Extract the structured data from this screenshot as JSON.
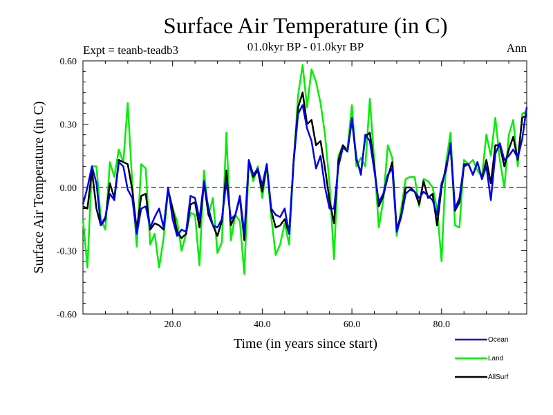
{
  "chart_data": {
    "type": "line",
    "title": "Surface Air Temperature (in C)",
    "subtitle": "01.0kyr BP - 01.0kyr BP",
    "left_label": "Expt = teanb-teadb3",
    "right_label": "Ann",
    "xlabel": "Time (in years since start)",
    "ylabel": "Surface Air Temperature (in C)",
    "xlim": [
      0,
      99
    ],
    "ylim": [
      -0.6,
      0.6
    ],
    "xticks": [
      20,
      40,
      60,
      80
    ],
    "xtick_labels": [
      "20.0",
      "40.0",
      "60.0",
      "80.0"
    ],
    "yticks": [
      -0.6,
      -0.3,
      0.0,
      0.3,
      0.6
    ],
    "ytick_labels": [
      "-0.60",
      "-0.30",
      "0.00",
      "0.30",
      "0.60"
    ],
    "zero_line": true,
    "legend_position": "bottom-right",
    "x": [
      0,
      1,
      2,
      3,
      4,
      5,
      6,
      7,
      8,
      9,
      10,
      11,
      12,
      13,
      14,
      15,
      16,
      17,
      18,
      19,
      20,
      21,
      22,
      23,
      24,
      25,
      26,
      27,
      28,
      29,
      30,
      31,
      32,
      33,
      34,
      35,
      36,
      37,
      38,
      39,
      40,
      41,
      42,
      43,
      44,
      45,
      46,
      47,
      48,
      49,
      50,
      51,
      52,
      53,
      54,
      55,
      56,
      57,
      58,
      59,
      60,
      61,
      62,
      63,
      64,
      65,
      66,
      67,
      68,
      69,
      70,
      71,
      72,
      73,
      74,
      75,
      76,
      77,
      78,
      79,
      80,
      81,
      82,
      83,
      84,
      85,
      86,
      87,
      88,
      89,
      90,
      91,
      92,
      93,
      94,
      95,
      96,
      97,
      98,
      99
    ],
    "series": [
      {
        "name": "Land",
        "color": "#00ee00",
        "values": [
          -0.15,
          -0.38,
          0.1,
          0.1,
          -0.15,
          -0.2,
          0.12,
          0.05,
          0.18,
          0.12,
          0.4,
          0.02,
          -0.28,
          0.11,
          0.09,
          -0.27,
          -0.22,
          -0.38,
          -0.24,
          -0.01,
          -0.1,
          -0.16,
          -0.3,
          -0.22,
          -0.12,
          -0.13,
          -0.37,
          0.08,
          -0.13,
          -0.05,
          -0.31,
          -0.26,
          0.26,
          -0.25,
          -0.13,
          -0.16,
          -0.41,
          0.12,
          0.03,
          0.1,
          -0.05,
          0.1,
          -0.14,
          -0.32,
          -0.27,
          -0.17,
          -0.27,
          0.12,
          0.44,
          0.58,
          0.38,
          0.56,
          0.5,
          0.4,
          0.25,
          0.02,
          -0.34,
          0.15,
          0.2,
          0.18,
          0.39,
          0.1,
          0.14,
          0.1,
          0.42,
          0.12,
          -0.19,
          -0.06,
          0.2,
          0.14,
          -0.23,
          -0.1,
          0.04,
          0.05,
          0.05,
          -0.09,
          0.04,
          0.03,
          0.0,
          -0.1,
          -0.35,
          0.12,
          0.26,
          -0.18,
          -0.19,
          0.13,
          0.11,
          0.13,
          0.08,
          0.05,
          0.25,
          0.15,
          0.33,
          0.13,
          0.0,
          0.25,
          0.32,
          0.1,
          0.35,
          0.36
        ]
      },
      {
        "name": "AllSurf",
        "color": "#000000",
        "values": [
          -0.09,
          -0.1,
          0.08,
          -0.1,
          -0.18,
          -0.15,
          0.02,
          -0.05,
          0.13,
          0.12,
          0.11,
          -0.01,
          -0.2,
          -0.04,
          -0.03,
          -0.2,
          -0.17,
          -0.18,
          -0.2,
          -0.01,
          -0.1,
          -0.21,
          -0.24,
          -0.22,
          -0.08,
          -0.07,
          -0.19,
          0.02,
          -0.13,
          -0.18,
          -0.23,
          -0.16,
          0.08,
          -0.18,
          -0.13,
          -0.05,
          -0.25,
          0.12,
          0.05,
          0.08,
          -0.02,
          0.11,
          -0.11,
          -0.19,
          -0.18,
          -0.15,
          -0.22,
          0.13,
          0.38,
          0.45,
          0.3,
          0.32,
          0.2,
          0.22,
          0.09,
          -0.06,
          -0.17,
          0.13,
          0.2,
          0.17,
          0.32,
          0.13,
          0.07,
          0.24,
          0.26,
          0.1,
          -0.09,
          -0.04,
          0.05,
          0.12,
          -0.2,
          -0.13,
          0.0,
          0.0,
          -0.02,
          -0.08,
          0.03,
          -0.05,
          -0.03,
          -0.18,
          0.0,
          0.1,
          0.19,
          -0.11,
          -0.07,
          0.1,
          0.11,
          0.06,
          0.12,
          0.04,
          0.13,
          0.02,
          0.2,
          0.2,
          0.1,
          0.18,
          0.24,
          0.13,
          0.33,
          0.34
        ]
      },
      {
        "name": "Ocean",
        "color": "#0000ee",
        "values": [
          -0.08,
          0.0,
          0.1,
          0.02,
          -0.18,
          -0.14,
          -0.03,
          -0.06,
          0.12,
          0.1,
          -0.01,
          -0.05,
          -0.22,
          -0.1,
          -0.09,
          -0.19,
          -0.14,
          -0.1,
          -0.19,
          0.0,
          -0.15,
          -0.23,
          -0.2,
          -0.21,
          -0.04,
          -0.05,
          -0.15,
          0.03,
          -0.1,
          -0.18,
          -0.19,
          -0.15,
          0.03,
          -0.15,
          -0.13,
          -0.04,
          -0.22,
          0.13,
          0.06,
          0.09,
          0.01,
          0.11,
          -0.1,
          -0.13,
          -0.14,
          -0.1,
          -0.22,
          0.12,
          0.35,
          0.39,
          0.28,
          0.22,
          0.09,
          0.15,
          0.0,
          -0.1,
          -0.1,
          0.1,
          0.19,
          0.17,
          0.33,
          0.14,
          0.06,
          0.25,
          0.22,
          0.08,
          -0.07,
          -0.03,
          0.06,
          0.09,
          -0.21,
          -0.14,
          -0.03,
          -0.01,
          -0.02,
          -0.05,
          -0.02,
          -0.04,
          -0.06,
          -0.13,
          0.02,
          0.08,
          0.21,
          -0.1,
          -0.05,
          0.11,
          0.11,
          0.06,
          0.12,
          0.04,
          0.1,
          -0.06,
          0.16,
          0.21,
          0.13,
          0.15,
          0.18,
          0.14,
          0.23,
          0.38
        ]
      }
    ],
    "legend": [
      {
        "name": "Ocean",
        "color": "#0000ee"
      },
      {
        "name": "Land",
        "color": "#00ee00"
      },
      {
        "name": "AllSurf",
        "color": "#000000"
      }
    ]
  }
}
